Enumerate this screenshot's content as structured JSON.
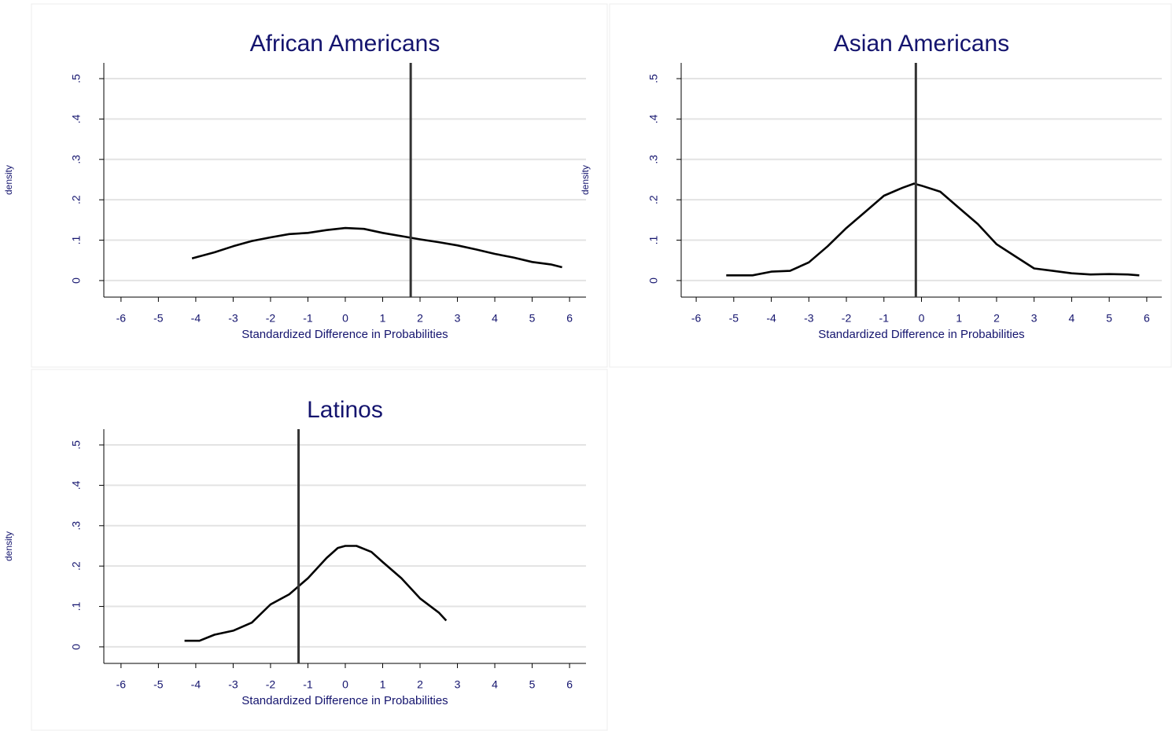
{
  "chart_data": [
    {
      "type": "line",
      "title": "African Americans",
      "xlabel": "Standardized Difference in Probabilities",
      "ylabel": "density",
      "x": [
        -4.1,
        -3.5,
        -3,
        -2.5,
        -2,
        -1.5,
        -1,
        -0.5,
        0,
        0.5,
        1,
        1.5,
        2,
        2.5,
        3,
        3.5,
        4,
        4.5,
        5,
        5.5,
        5.8
      ],
      "values": [
        0.055,
        0.07,
        0.085,
        0.098,
        0.107,
        0.115,
        0.118,
        0.125,
        0.13,
        0.128,
        0.118,
        0.11,
        0.102,
        0.095,
        0.087,
        0.077,
        0.066,
        0.057,
        0.046,
        0.04,
        0.033
      ],
      "color": "#000000",
      "xline": 1.75,
      "xline_color": "#333333",
      "xlim": [
        -6.46,
        6.44
      ],
      "ylim": [
        -0.041,
        0.539
      ],
      "xticks": [
        -6,
        -5,
        -4,
        -3,
        -2,
        -1,
        0,
        1,
        2,
        3,
        4,
        5,
        6
      ],
      "yticks": [
        0,
        {
          "value": 0.1,
          "label": ".1"
        },
        {
          "value": 0.2,
          "label": ".2"
        },
        {
          "value": 0.3,
          "label": ".3"
        },
        {
          "value": 0.4,
          "label": ".4"
        },
        {
          "value": 0.5,
          "label": ".5"
        }
      ],
      "grid": true
    },
    {
      "type": "line",
      "title": "Asian Americans",
      "xlabel": "Standardized Difference in Probabilities",
      "ylabel": "density",
      "x": [
        -5.2,
        -4.5,
        -4,
        -3.5,
        -3,
        -2.5,
        -2,
        -1.5,
        -1,
        -0.5,
        -0.2,
        0,
        0.5,
        1,
        1.5,
        2,
        2.5,
        3,
        3.5,
        4,
        4.5,
        5,
        5.5,
        5.8
      ],
      "values": [
        0.013,
        0.013,
        0.022,
        0.024,
        0.045,
        0.085,
        0.13,
        0.17,
        0.21,
        0.23,
        0.24,
        0.235,
        0.22,
        0.18,
        0.14,
        0.09,
        0.06,
        0.03,
        0.024,
        0.018,
        0.015,
        0.016,
        0.015,
        0.013
      ],
      "color": "#000000",
      "xline": -0.15,
      "xline_color": "#333333",
      "xlim": [
        -6.4,
        6.4
      ],
      "ylim": [
        -0.041,
        0.539
      ],
      "xticks": [
        -6,
        -5,
        -4,
        -3,
        -2,
        -1,
        0,
        1,
        2,
        3,
        4,
        5,
        6
      ],
      "yticks": [
        0,
        {
          "value": 0.1,
          "label": ".1"
        },
        {
          "value": 0.2,
          "label": ".2"
        },
        {
          "value": 0.3,
          "label": ".3"
        },
        {
          "value": 0.4,
          "label": ".4"
        },
        {
          "value": 0.5,
          "label": ".5"
        }
      ],
      "grid": true
    },
    {
      "type": "line",
      "title": "Latinos",
      "xlabel": "Standardized Difference in Probabilities",
      "ylabel": "density",
      "x": [
        -4.3,
        -3.9,
        -3.5,
        -3,
        -2.5,
        -2,
        -1.5,
        -1,
        -0.5,
        -0.2,
        0,
        0.3,
        0.7,
        1,
        1.5,
        2,
        2.5,
        2.7
      ],
      "values": [
        0.015,
        0.015,
        0.03,
        0.04,
        0.06,
        0.105,
        0.13,
        0.17,
        0.22,
        0.245,
        0.25,
        0.25,
        0.235,
        0.21,
        0.17,
        0.12,
        0.085,
        0.065
      ],
      "color": "#000000",
      "xline": -1.25,
      "xline_color": "#333333",
      "xlim": [
        -6.46,
        6.44
      ],
      "ylim": [
        -0.041,
        0.539
      ],
      "xticks": [
        -6,
        -5,
        -4,
        -3,
        -2,
        -1,
        0,
        1,
        2,
        3,
        4,
        5,
        6
      ],
      "yticks": [
        0,
        {
          "value": 0.1,
          "label": ".1"
        },
        {
          "value": 0.2,
          "label": ".2"
        },
        {
          "value": 0.3,
          "label": ".3"
        },
        {
          "value": 0.4,
          "label": ".4"
        },
        {
          "value": 0.5,
          "label": ".5"
        }
      ],
      "grid": true
    }
  ]
}
